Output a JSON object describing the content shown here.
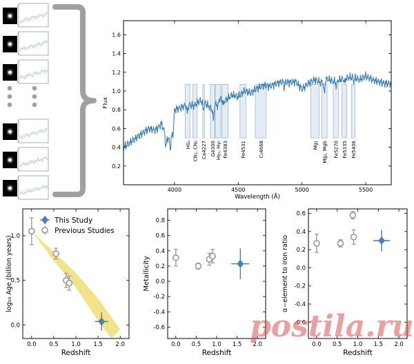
{
  "figure": {
    "thumbnails": {
      "count_top": 3,
      "count_bottom": 3,
      "dots": 3,
      "spectrum_color": "#a7c4e2",
      "galaxy_bg": "#000000"
    },
    "brace_color": "#a0a0a0",
    "watermark": "postila.ru"
  },
  "chart_data": [
    {
      "id": "spectrum",
      "type": "line",
      "title": "",
      "xlabel": "Wavelength (Å)",
      "ylabel": "Flux",
      "xlim": [
        3600,
        5700
      ],
      "ylim": [
        0.0,
        1.75
      ],
      "xticks": [
        4000,
        4500,
        5000,
        5500
      ],
      "yticks": [
        0.2,
        0.4,
        0.6,
        0.8,
        1.0,
        1.2,
        1.4,
        1.6
      ],
      "line_color": "#3f7fb5",
      "band_fill": "#e4edf5",
      "band_edge": "#8aa6c0",
      "band_y_range": [
        0.5,
        1.07
      ],
      "spectrum_knots": [
        [
          3600,
          0.4
        ],
        [
          3650,
          0.45
        ],
        [
          3700,
          0.5
        ],
        [
          3750,
          0.55
        ],
        [
          3800,
          0.6
        ],
        [
          3850,
          0.58
        ],
        [
          3900,
          0.65
        ],
        [
          3930,
          0.52
        ],
        [
          3960,
          0.48
        ],
        [
          3990,
          0.55
        ],
        [
          4000,
          0.8
        ],
        [
          4050,
          0.82
        ],
        [
          4100,
          0.86
        ],
        [
          4150,
          0.84
        ],
        [
          4200,
          0.9
        ],
        [
          4250,
          0.86
        ],
        [
          4300,
          0.8
        ],
        [
          4350,
          0.92
        ],
        [
          4400,
          0.9
        ],
        [
          4450,
          0.96
        ],
        [
          4500,
          0.94
        ],
        [
          4550,
          1.0
        ],
        [
          4600,
          0.98
        ],
        [
          4650,
          1.03
        ],
        [
          4700,
          1.06
        ],
        [
          4750,
          1.05
        ],
        [
          4800,
          1.08
        ],
        [
          4850,
          1.1
        ],
        [
          4900,
          1.09
        ],
        [
          4950,
          1.1
        ],
        [
          5000,
          1.02
        ],
        [
          5050,
          1.08
        ],
        [
          5100,
          1.12
        ],
        [
          5150,
          1.09
        ],
        [
          5200,
          1.13
        ],
        [
          5250,
          1.1
        ],
        [
          5300,
          1.12
        ],
        [
          5350,
          1.14
        ],
        [
          5400,
          1.15
        ],
        [
          5450,
          1.12
        ],
        [
          5500,
          1.16
        ],
        [
          5550,
          1.12
        ],
        [
          5600,
          1.1
        ],
        [
          5650,
          1.08
        ],
        [
          5700,
          1.08
        ]
      ],
      "absorption_dips": [
        [
          3933,
          0.12
        ],
        [
          3968,
          0.1
        ],
        [
          4101,
          0.1
        ],
        [
          4226,
          0.08
        ],
        [
          4305,
          0.12
        ],
        [
          4340,
          0.08
        ],
        [
          4383,
          0.06
        ],
        [
          4861,
          0.05
        ],
        [
          5175,
          0.14
        ],
        [
          5270,
          0.06
        ],
        [
          5335,
          0.05
        ],
        [
          5406,
          0.04
        ]
      ],
      "bands": [
        {
          "label": "Hδₐ",
          "x0": 4083,
          "x1": 4122
        },
        {
          "label": "CN₁, CN₂",
          "x0": 4143,
          "x1": 4178
        },
        {
          "label": "Ca4227",
          "x0": 4222,
          "x1": 4235
        },
        {
          "label": "G4300",
          "x0": 4281,
          "x1": 4316
        },
        {
          "label": "Hγₐ, Hγₜ",
          "x0": 4319,
          "x1": 4363
        },
        {
          "label": "Fe4383",
          "x0": 4370,
          "x1": 4421
        },
        {
          "label": "Fe4531",
          "x0": 4514,
          "x1": 4560
        },
        {
          "label": "C₂4668",
          "x0": 4634,
          "x1": 4720
        },
        {
          "label": "Mg₁",
          "x0": 5069,
          "x1": 5134
        },
        {
          "label": "Mg₂, Mgb",
          "x0": 5154,
          "x1": 5197
        },
        {
          "label": "Fe5270",
          "x0": 5245,
          "x1": 5285
        },
        {
          "label": "Fe5335",
          "x0": 5312,
          "x1": 5352
        },
        {
          "label": "Fe5406",
          "x0": 5387,
          "x1": 5415
        }
      ]
    },
    {
      "id": "age",
      "type": "scatter",
      "title": "",
      "xlabel": "Redshift",
      "ylabel": "log₁₀ Age (billion years)",
      "xlim": [
        -0.2,
        2.2
      ],
      "ylim": [
        -0.15,
        1.3
      ],
      "xticks": [
        0.0,
        0.5,
        1.0,
        1.5,
        2.0
      ],
      "yticks": [
        0.0,
        0.5,
        1.0
      ],
      "legend": {
        "placement": "top-right",
        "entries": [
          {
            "label": "This Study",
            "marker": "diamond"
          },
          {
            "label": "Previous Studies",
            "marker": "circle"
          }
        ]
      },
      "band": {
        "color": "#f2e28a",
        "upper": [
          [
            0.0,
            1.05
          ],
          [
            0.5,
            0.82
          ],
          [
            1.0,
            0.58
          ],
          [
            1.5,
            0.3
          ],
          [
            2.0,
            -0.05
          ]
        ],
        "lower": [
          [
            0.0,
            1.05
          ],
          [
            0.5,
            0.72
          ],
          [
            1.0,
            0.42
          ],
          [
            1.5,
            0.05
          ],
          [
            1.8,
            -0.15
          ]
        ]
      },
      "series": [
        {
          "name": "This Study",
          "marker": "diamond",
          "color": "#4b7fb3",
          "points": [
            {
              "x": 1.58,
              "y": 0.04,
              "xerr": 0.15,
              "yerr": 0.1
            }
          ]
        },
        {
          "name": "Previous Studies",
          "marker": "circle",
          "color": "#999999",
          "points": [
            {
              "x": 0.0,
              "y": 1.05,
              "xerr": 0,
              "yerr": 0.15
            },
            {
              "x": 0.55,
              "y": 0.8,
              "xerr": 0,
              "yerr": 0.06
            },
            {
              "x": 0.78,
              "y": 0.5,
              "xerr": 0,
              "yerr": 0.08
            },
            {
              "x": 0.85,
              "y": 0.47,
              "xerr": 0,
              "yerr": 0.08
            }
          ]
        }
      ]
    },
    {
      "id": "metallicity",
      "type": "scatter",
      "title": "",
      "xlabel": "Redshift",
      "ylabel": "Metallicity",
      "xlim": [
        -0.2,
        2.2
      ],
      "ylim": [
        -0.75,
        0.95
      ],
      "xticks": [
        0.0,
        0.5,
        1.0,
        1.5,
        2.0
      ],
      "yticks": [
        -0.6,
        -0.4,
        -0.2,
        0.0,
        0.2,
        0.4,
        0.6,
        0.8
      ],
      "series": [
        {
          "name": "This Study",
          "marker": "diamond",
          "color": "#4b7fb3",
          "points": [
            {
              "x": 1.58,
              "y": 0.23,
              "xerr": 0.22,
              "yerr": 0.2
            }
          ]
        },
        {
          "name": "Previous Studies",
          "marker": "circle",
          "color": "#999999",
          "points": [
            {
              "x": 0.0,
              "y": 0.31,
              "xerr": 0,
              "yerr": 0.11
            },
            {
              "x": 0.55,
              "y": 0.2,
              "xerr": 0,
              "yerr": 0.04
            },
            {
              "x": 0.82,
              "y": 0.29,
              "xerr": 0,
              "yerr": 0.08
            },
            {
              "x": 0.9,
              "y": 0.33,
              "xerr": 0,
              "yerr": 0.09
            }
          ]
        }
      ]
    },
    {
      "id": "alpha",
      "type": "scatter",
      "title": "",
      "xlabel": "Redshift",
      "ylabel": "α−element to iron ratio",
      "xlim": [
        -0.2,
        2.2
      ],
      "ylim": [
        -0.78,
        0.65
      ],
      "xticks": [
        0.0,
        0.5,
        1.0,
        1.5,
        2.0
      ],
      "yticks": [
        -0.6,
        -0.4,
        -0.2,
        0.0,
        0.2,
        0.4,
        0.6
      ],
      "series": [
        {
          "name": "This Study",
          "marker": "diamond",
          "color": "#4b7fb3",
          "points": [
            {
              "x": 1.58,
              "y": 0.3,
              "xerr": 0.2,
              "yerr": 0.12
            }
          ]
        },
        {
          "name": "Previous Studies",
          "marker": "circle",
          "color": "#999999",
          "points": [
            {
              "x": 0.0,
              "y": 0.27,
              "xerr": 0,
              "yerr": 0.1
            },
            {
              "x": 0.58,
              "y": 0.27,
              "xerr": 0,
              "yerr": 0.04
            },
            {
              "x": 0.88,
              "y": 0.58,
              "xerr": 0,
              "yerr": 0.04
            },
            {
              "x": 0.9,
              "y": 0.34,
              "xerr": 0,
              "yerr": 0.08
            }
          ]
        }
      ]
    }
  ]
}
